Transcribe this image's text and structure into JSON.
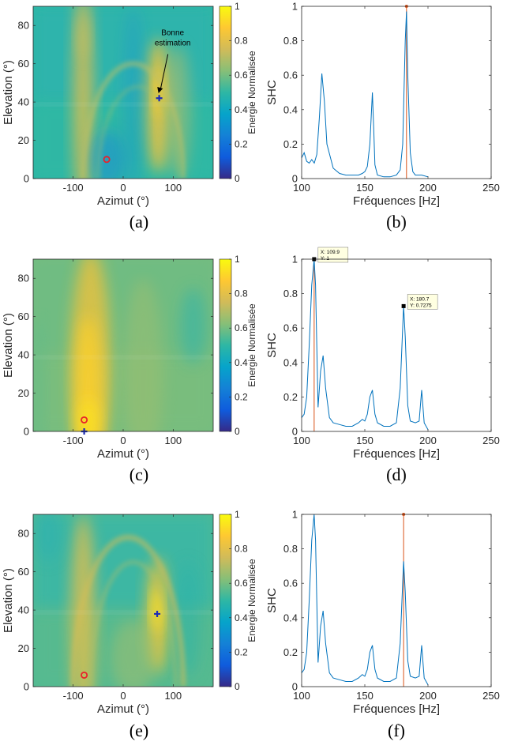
{
  "colors": {
    "line": "#0072BD",
    "marker_line": "#D95319",
    "circle": "#E8222B",
    "cross": "#1B2BB5",
    "tip_bg": "#FFFFE1",
    "parula": [
      "#352A87",
      "#0F5CDD",
      "#1481D6",
      "#06A4CA",
      "#2EB7A4",
      "#87BF77",
      "#D1BB59",
      "#FEC832",
      "#F9FB0E"
    ]
  },
  "chart_data": [
    {
      "id": "a",
      "type": "heatmap",
      "caption": "(a)",
      "xlabel": "Azimut (°)",
      "ylabel": "Elevation (°)",
      "colorbar_label": "Energie Normalisée",
      "xlim": [
        -180,
        180
      ],
      "ylim": [
        0,
        90
      ],
      "xticks": [
        -100,
        0,
        100
      ],
      "yticks": [
        0,
        20,
        40,
        60,
        80
      ],
      "cticks": [
        0,
        0.2,
        0.4,
        0.6,
        0.8,
        1
      ],
      "base": 0.5,
      "background": [
        {
          "col": "#2FB4AC",
          "opacity": 1
        },
        {
          "col": "#33B9A4",
          "opacity": 0.45
        }
      ],
      "blobs": [
        {
          "x": -80,
          "y": 40,
          "w": 20,
          "h": 60,
          "col": "#E4BE4B",
          "opacity": 0.8
        },
        {
          "x": -80,
          "y": 75,
          "w": 12,
          "h": 12,
          "col": "#C9BE5F",
          "opacity": 0.6
        },
        {
          "x": 70,
          "y": 38,
          "w": 25,
          "h": 35,
          "col": "#F2C23C",
          "opacity": 0.85
        },
        {
          "x": 72,
          "y": 45,
          "w": 10,
          "h": 12,
          "col": "#FBD22E",
          "opacity": 0.9
        },
        {
          "x": 110,
          "y": 35,
          "w": 25,
          "h": 35,
          "col": "#B7BE66",
          "opacity": 0.55
        },
        {
          "x": -30,
          "y": 10,
          "w": 35,
          "h": 15,
          "col": "#1A8FD3",
          "opacity": 0.55
        },
        {
          "x": 20,
          "y": 40,
          "w": 20,
          "h": 50,
          "col": "#1C97CF",
          "opacity": 0.4
        }
      ],
      "arcs": [
        {
          "cx": 20,
          "rx": 100,
          "ry": 60,
          "col": "#BFC065",
          "width": 6,
          "opacity": 0.6
        },
        {
          "cx": 30,
          "rx": 80,
          "ry": 48,
          "col": "#9CBF70",
          "width": 4,
          "opacity": 0.45
        }
      ],
      "circle": {
        "x": -33,
        "y": 10
      },
      "cross": {
        "x": 72,
        "y": 42
      },
      "annotation": {
        "lines": [
          "Bonne",
          "estimation"
        ],
        "from": [
          80,
          65
        ],
        "to": [
          73,
          45
        ]
      }
    },
    {
      "id": "b",
      "type": "line",
      "caption": "(b)",
      "xlabel": "Fréquences [Hz]",
      "ylabel": "SHC",
      "xlim": [
        100,
        250
      ],
      "ylim": [
        0,
        1
      ],
      "xticks": [
        100,
        150,
        200,
        250
      ],
      "yticks": [
        0,
        0.2,
        0.4,
        0.6,
        0.8,
        1
      ],
      "x": [
        100,
        102,
        104,
        106,
        108,
        110,
        112,
        114,
        116,
        118,
        120,
        125,
        130,
        135,
        140,
        145,
        148,
        150,
        152,
        154,
        156,
        157,
        158,
        160,
        165,
        170,
        175,
        178,
        180,
        182,
        183,
        184,
        186,
        188,
        190,
        195,
        200
      ],
      "y": [
        0.12,
        0.15,
        0.1,
        0.09,
        0.11,
        0.09,
        0.14,
        0.35,
        0.61,
        0.45,
        0.2,
        0.06,
        0.03,
        0.02,
        0.02,
        0.02,
        0.03,
        0.04,
        0.07,
        0.2,
        0.5,
        0.3,
        0.08,
        0.02,
        0.01,
        0.01,
        0.02,
        0.05,
        0.2,
        0.8,
        0.97,
        0.6,
        0.15,
        0.04,
        0.02,
        0.02,
        0.01
      ],
      "vline": 183
    },
    {
      "id": "c",
      "type": "heatmap",
      "caption": "(c)",
      "xlabel": "Azimut (°)",
      "ylabel": "Elevation (°)",
      "colorbar_label": "Energie Normalisée",
      "xlim": [
        -180,
        180
      ],
      "ylim": [
        0,
        90
      ],
      "xticks": [
        -100,
        0,
        100
      ],
      "yticks": [
        0,
        20,
        40,
        60,
        80
      ],
      "cticks": [
        0,
        0.2,
        0.4,
        0.6,
        0.8,
        1
      ],
      "base": 0.6,
      "background": [
        {
          "col": "#6FBC82",
          "opacity": 1
        },
        {
          "col": "#7FBE7A",
          "opacity": 0.4
        }
      ],
      "blobs": [
        {
          "x": -65,
          "y": 35,
          "w": 40,
          "h": 60,
          "col": "#F5C238",
          "opacity": 0.75
        },
        {
          "x": -70,
          "y": 20,
          "w": 25,
          "h": 40,
          "col": "#FDD12C",
          "opacity": 0.8
        },
        {
          "x": -70,
          "y": 5,
          "w": 20,
          "h": 12,
          "col": "#FBE222",
          "opacity": 0.8
        },
        {
          "x": 40,
          "y": 30,
          "w": 40,
          "h": 50,
          "col": "#A6BF6C",
          "opacity": 0.45
        },
        {
          "x": 140,
          "y": 55,
          "w": 25,
          "h": 20,
          "col": "#2FB4AC",
          "opacity": 0.55
        },
        {
          "x": -170,
          "y": 20,
          "w": 12,
          "h": 40,
          "col": "#56BA91",
          "opacity": 0.4
        }
      ],
      "arcs": [],
      "circle": {
        "x": -78,
        "y": 6
      },
      "cross": {
        "x": -78,
        "y": 0
      }
    },
    {
      "id": "d",
      "type": "line",
      "caption": "(d)",
      "xlabel": "Fréquences [Hz]",
      "ylabel": "SHC",
      "xlim": [
        100,
        250
      ],
      "ylim": [
        0,
        1
      ],
      "xticks": [
        100,
        150,
        200,
        250
      ],
      "yticks": [
        0,
        0.2,
        0.4,
        0.6,
        0.8,
        1
      ],
      "x": [
        100,
        102,
        104,
        106,
        108,
        109.9,
        111,
        113,
        115,
        117,
        119,
        122,
        125,
        130,
        135,
        140,
        145,
        148,
        150,
        152,
        154,
        156,
        158,
        160,
        165,
        170,
        175,
        178,
        180.7,
        182,
        184,
        186,
        190,
        193,
        195,
        197,
        200
      ],
      "y": [
        0.08,
        0.1,
        0.2,
        0.5,
        0.85,
        1.0,
        0.85,
        0.14,
        0.35,
        0.44,
        0.25,
        0.08,
        0.05,
        0.04,
        0.03,
        0.03,
        0.05,
        0.07,
        0.06,
        0.1,
        0.2,
        0.24,
        0.1,
        0.05,
        0.03,
        0.03,
        0.05,
        0.25,
        0.7275,
        0.55,
        0.15,
        0.06,
        0.05,
        0.06,
        0.24,
        0.05,
        0.01
      ],
      "vline": 109.9,
      "datatips": [
        {
          "x": 109.9,
          "y": 1,
          "xtext": "X: 109.9",
          "ytext": "Y: 1"
        },
        {
          "x": 180.7,
          "y": 0.7275,
          "xtext": "X: 180.7",
          "ytext": "Y: 0.7275"
        }
      ]
    },
    {
      "id": "e",
      "type": "heatmap",
      "caption": "(e)",
      "xlabel": "Azimut (°)",
      "ylabel": "Elevation (°)",
      "colorbar_label": "Energie Normalisée",
      "xlim": [
        -180,
        180
      ],
      "ylim": [
        0,
        90
      ],
      "xticks": [
        -100,
        0,
        100
      ],
      "yticks": [
        0,
        20,
        40,
        60,
        80
      ],
      "cticks": [
        0,
        0.2,
        0.4,
        0.6,
        0.8,
        1
      ],
      "base": 0.55,
      "background": [
        {
          "col": "#3CB7A3",
          "opacity": 1
        },
        {
          "col": "#5DBA8D",
          "opacity": 0.45
        }
      ],
      "blobs": [
        {
          "x": -80,
          "y": 35,
          "w": 25,
          "h": 55,
          "col": "#EDC046",
          "opacity": 0.75
        },
        {
          "x": 68,
          "y": 37,
          "w": 22,
          "h": 30,
          "col": "#F8C634",
          "opacity": 0.8
        },
        {
          "x": 68,
          "y": 40,
          "w": 10,
          "h": 12,
          "col": "#FBE425",
          "opacity": 0.9
        },
        {
          "x": 20,
          "y": 15,
          "w": 45,
          "h": 20,
          "col": "#A8BF6C",
          "opacity": 0.5
        },
        {
          "x": 130,
          "y": 35,
          "w": 25,
          "h": 30,
          "col": "#2AB3AB",
          "opacity": 0.5
        },
        {
          "x": -150,
          "y": 80,
          "w": 25,
          "h": 15,
          "col": "#2AB0B3",
          "opacity": 0.5
        }
      ],
      "arcs": [
        {
          "cx": 10,
          "rx": 110,
          "ry": 78,
          "col": "#D6BD56",
          "width": 7,
          "opacity": 0.55
        },
        {
          "cx": 20,
          "rx": 85,
          "ry": 65,
          "col": "#B5BE65",
          "width": 5,
          "opacity": 0.45
        }
      ],
      "circle": {
        "x": -78,
        "y": 6
      },
      "cross": {
        "x": 68,
        "y": 38
      }
    },
    {
      "id": "f",
      "type": "line",
      "caption": "(f)",
      "xlabel": "Fréquences [Hz]",
      "ylabel": "SHC",
      "xlim": [
        100,
        250
      ],
      "ylim": [
        0,
        1
      ],
      "xticks": [
        100,
        150,
        200,
        250
      ],
      "yticks": [
        0,
        0.2,
        0.4,
        0.6,
        0.8,
        1
      ],
      "x": [
        100,
        102,
        104,
        106,
        108,
        109.9,
        111,
        113,
        115,
        117,
        119,
        122,
        125,
        130,
        135,
        140,
        145,
        148,
        150,
        152,
        154,
        156,
        158,
        160,
        165,
        170,
        175,
        178,
        180.7,
        182,
        184,
        186,
        190,
        193,
        195,
        197,
        200
      ],
      "y": [
        0.08,
        0.1,
        0.2,
        0.5,
        0.85,
        1.0,
        0.85,
        0.14,
        0.35,
        0.44,
        0.25,
        0.08,
        0.05,
        0.04,
        0.03,
        0.03,
        0.05,
        0.07,
        0.06,
        0.1,
        0.2,
        0.24,
        0.1,
        0.05,
        0.03,
        0.03,
        0.05,
        0.25,
        0.7275,
        0.55,
        0.15,
        0.06,
        0.05,
        0.06,
        0.24,
        0.05,
        0.01
      ],
      "vline": 180.7
    }
  ]
}
